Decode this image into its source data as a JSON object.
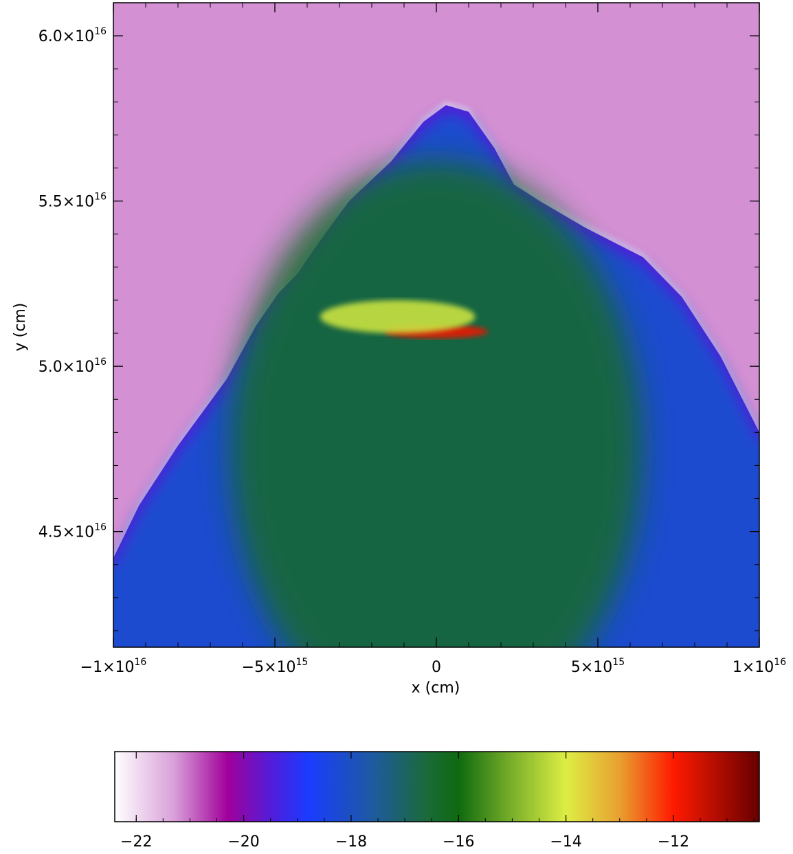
{
  "chart_data": {
    "type": "heatmap",
    "xlabel": "x (cm)",
    "ylabel": "y (cm)",
    "xlim": [
      -1e+16,
      1e+16
    ],
    "ylim": [
      4.15e+16,
      6.1e+16
    ],
    "x_ticks": [
      {
        "value": -1e+16,
        "mant": "−1×10",
        "exp": "16"
      },
      {
        "value": -5000000000000000.0,
        "mant": "−5×10",
        "exp": "15"
      },
      {
        "value": 0,
        "mant": "0",
        "exp": ""
      },
      {
        "value": 5000000000000000.0,
        "mant": "5×10",
        "exp": "15"
      },
      {
        "value": 1e+16,
        "mant": "1×10",
        "exp": "16"
      }
    ],
    "y_ticks": [
      {
        "value": 4.5e+16,
        "mant": "4.5×10",
        "exp": "16"
      },
      {
        "value": 5e+16,
        "mant": "5.0×10",
        "exp": "16"
      },
      {
        "value": 5.5e+16,
        "mant": "5.5×10",
        "exp": "16"
      },
      {
        "value": 6e+16,
        "mant": "6.0×10",
        "exp": "16"
      }
    ],
    "colorbar": {
      "range": [
        -22.4,
        -10.4
      ],
      "ticks": [
        {
          "value": -22,
          "label": "−22"
        },
        {
          "value": -20,
          "label": "−20"
        },
        {
          "value": -18,
          "label": "−18"
        },
        {
          "value": -16,
          "label": "−16"
        },
        {
          "value": -14,
          "label": "−14"
        },
        {
          "value": -12,
          "label": "−12"
        }
      ],
      "stops": [
        {
          "value": -22.4,
          "color": "#ffffff"
        },
        {
          "value": -21.3,
          "color": "#d9a0d9"
        },
        {
          "value": -20.3,
          "color": "#a0009a"
        },
        {
          "value": -19.4,
          "color": "#4a20e0"
        },
        {
          "value": -18.8,
          "color": "#1a3cff"
        },
        {
          "value": -17.6,
          "color": "#1e5aa0"
        },
        {
          "value": -16.6,
          "color": "#1a6a3a"
        },
        {
          "value": -16.0,
          "color": "#0f6a10"
        },
        {
          "value": -15.0,
          "color": "#7ab02a"
        },
        {
          "value": -14.0,
          "color": "#ddee44"
        },
        {
          "value": -13.0,
          "color": "#e8a030"
        },
        {
          "value": -12.0,
          "color": "#ff1a00"
        },
        {
          "value": -10.4,
          "color": "#660000"
        }
      ]
    },
    "field": {
      "background_value": -21.2,
      "envelope_edge_value": -19.5,
      "envelope_body_value": -18.2,
      "core_value": -16.4,
      "boundary": [
        [
          -1e+16,
          4.42e+16
        ],
        [
          -9200000000000000.0,
          4.58e+16
        ],
        [
          -8000000000000000.0,
          4.76e+16
        ],
        [
          -6500000000000000.0,
          4.96e+16
        ],
        [
          -5600000000000000.0,
          5.12e+16
        ],
        [
          -4900000000000000.0,
          5.22e+16
        ],
        [
          -4300000000000000.0,
          5.28e+16
        ],
        [
          -3600000000000000.0,
          5.38e+16
        ],
        [
          -2700000000000000.0,
          5.5e+16
        ],
        [
          -1400000000000000.0,
          5.62e+16
        ],
        [
          -400000000000000.0,
          5.74e+16
        ],
        [
          300000000000000.0,
          5.79e+16
        ],
        [
          1000000000000000.0,
          5.77e+16
        ],
        [
          1800000000000000.0,
          5.66e+16
        ],
        [
          2400000000000000.0,
          5.55e+16
        ],
        [
          3200000000000000.0,
          5.5e+16
        ],
        [
          4600000000000000.0,
          5.42e+16
        ],
        [
          6400000000000000.0,
          5.33e+16
        ],
        [
          7600000000000000.0,
          5.21e+16
        ],
        [
          8800000000000000.0,
          5.03e+16
        ],
        [
          1e+16,
          4.8e+16
        ]
      ],
      "features": [
        {
          "name": "dense clump",
          "cx": 0,
          "cy": 5.105e+16,
          "rx": 1600000000000000.0,
          "ry": 140000000000000.0,
          "value": -11.8
        },
        {
          "name": "bright arc",
          "cx": -1200000000000000.0,
          "cy": 5.15e+16,
          "rx": 2400000000000000.0,
          "ry": 500000000000000.0,
          "value": -14.2
        }
      ]
    }
  }
}
